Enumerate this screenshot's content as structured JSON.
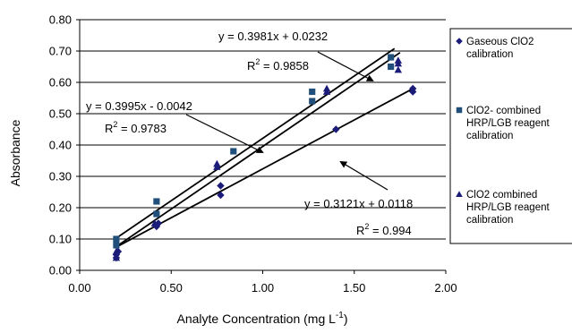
{
  "chart_data": {
    "type": "scatter",
    "xlabel": "Analyte Concentration (mg L",
    "xlabel_sup": "-1",
    "xlabel_close": ")",
    "ylabel": "Absorbance",
    "xlim": [
      0,
      2
    ],
    "ylim": [
      0,
      0.8
    ],
    "x_ticks": [
      "0.00",
      "0.50",
      "1.00",
      "1.50",
      "2.00"
    ],
    "y_ticks": [
      "0.00",
      "0.10",
      "0.20",
      "0.30",
      "0.40",
      "0.50",
      "0.60",
      "0.70",
      "0.80"
    ],
    "grid": "horizontal",
    "legend_position": "right",
    "series": [
      {
        "name": "Gaseous ClO2 calibration",
        "legend_lines": [
          "Gaseous ClO2",
          "calibration"
        ],
        "marker": "diamond",
        "color": "#1b1b7a",
        "points": [
          [
            0.2,
            0.04
          ],
          [
            0.2,
            0.05
          ],
          [
            0.21,
            0.06
          ],
          [
            0.42,
            0.14
          ],
          [
            0.43,
            0.15
          ],
          [
            0.77,
            0.24
          ],
          [
            0.77,
            0.27
          ],
          [
            1.4,
            0.45
          ],
          [
            1.82,
            0.57
          ],
          [
            1.82,
            0.58
          ]
        ],
        "fit": {
          "slope": 0.3121,
          "intercept": 0.0118,
          "x_range": [
            0.2,
            1.82
          ],
          "equation": "y = 0.3121x + 0.0118",
          "r2_label": "R",
          "r2_sup": "2",
          "r2_value": " = 0.994"
        }
      },
      {
        "name": "ClO2- combined HRP/LGB reagent calibration",
        "legend_lines": [
          "ClO2- combined",
          "HRP/LGB reagent",
          "calibration"
        ],
        "marker": "square",
        "color": "#1f4f7a",
        "points": [
          [
            0.2,
            0.08
          ],
          [
            0.2,
            0.1
          ],
          [
            0.42,
            0.22
          ],
          [
            0.42,
            0.18
          ],
          [
            0.84,
            0.38
          ],
          [
            1.27,
            0.54
          ],
          [
            1.27,
            0.57
          ],
          [
            1.7,
            0.65
          ],
          [
            1.7,
            0.68
          ]
        ],
        "fit": {
          "slope": 0.3981,
          "intercept": 0.0232,
          "x_range": [
            0.2,
            1.72
          ],
          "equation": "y = 0.3981x + 0.0232",
          "r2_label": "R",
          "r2_sup": "2",
          "r2_value": " = 0.9858"
        }
      },
      {
        "name": "ClO2 combined HRP/LGB reagent calibration",
        "legend_lines": [
          "ClO2 combined",
          "HRP/LGB reagent",
          "calibration"
        ],
        "marker": "triangle",
        "color": "#1b1b7a",
        "points": [
          [
            0.2,
            0.04
          ],
          [
            0.2,
            0.06
          ],
          [
            0.41,
            0.15
          ],
          [
            0.75,
            0.33
          ],
          [
            0.75,
            0.34
          ],
          [
            1.35,
            0.57
          ],
          [
            1.35,
            0.58
          ],
          [
            1.74,
            0.64
          ],
          [
            1.74,
            0.66
          ],
          [
            1.74,
            0.67
          ]
        ],
        "fit": {
          "slope": 0.3995,
          "intercept": -0.0042,
          "x_range": [
            0.2,
            1.75
          ],
          "equation": "y = 0.3995x - 0.0042",
          "r2_label": "R",
          "r2_sup": "2",
          "r2_value": " = 0.9783"
        }
      }
    ]
  }
}
